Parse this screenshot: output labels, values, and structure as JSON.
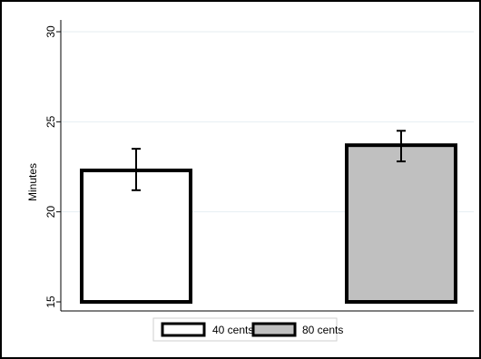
{
  "chart_data": {
    "type": "bar",
    "title": "",
    "xlabel": "",
    "ylabel": "Minutes",
    "ylim": [
      15,
      30
    ],
    "yticks": [
      "15",
      "20",
      "25",
      "30"
    ],
    "grid": true,
    "legend_position": "bottom",
    "series": [
      {
        "name": "40 cents",
        "value": 22.3,
        "ci_low": 21.2,
        "ci_high": 23.5,
        "color": "#ffffff"
      },
      {
        "name": "80 cents",
        "value": 23.7,
        "ci_low": 22.8,
        "ci_high": 24.5,
        "color": "#c0c0c0"
      }
    ]
  }
}
